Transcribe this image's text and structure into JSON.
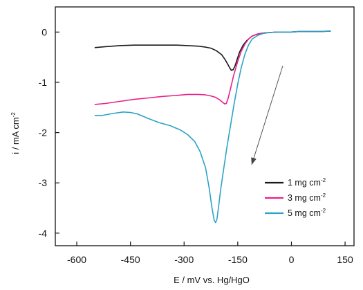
{
  "chart_data": {
    "type": "line",
    "title": "",
    "xlabel": "E / mV vs. Hg/HgO",
    "ylabel": "i / mA cm",
    "ylabel_sup": "-2",
    "xlim": [
      -660,
      175
    ],
    "ylim": [
      -4.25,
      0.5
    ],
    "xticks": [
      -600,
      -450,
      -300,
      -150,
      0,
      150
    ],
    "yticks": [
      0,
      -1,
      -2,
      -3,
      -4
    ],
    "grid": false,
    "legend_position": "bottom-right",
    "annotation": "arrow pointing down-left indicating increasing loading",
    "series": [
      {
        "name": "1 mg cm",
        "name_sup": "-2",
        "color": "#1a1a1a",
        "x": [
          -550,
          -520,
          -480,
          -440,
          -400,
          -360,
          -320,
          -290,
          -260,
          -240,
          -225,
          -210,
          -195,
          -185,
          -178,
          -172,
          -168,
          -163,
          -158,
          -152,
          -145,
          -135,
          -125,
          -110,
          -95,
          -80,
          -60,
          -40,
          -20,
          0,
          20,
          50,
          80,
          110
        ],
        "y": [
          -0.31,
          -0.29,
          -0.27,
          -0.26,
          -0.26,
          -0.26,
          -0.26,
          -0.27,
          -0.28,
          -0.3,
          -0.32,
          -0.37,
          -0.45,
          -0.55,
          -0.64,
          -0.72,
          -0.76,
          -0.75,
          -0.68,
          -0.55,
          -0.4,
          -0.26,
          -0.17,
          -0.08,
          -0.04,
          -0.02,
          -0.01,
          0.0,
          0.0,
          0.0,
          0.01,
          0.01,
          0.01,
          0.02
        ]
      },
      {
        "name": "3 mg cm",
        "name_sup": "-2",
        "color": "#e8208a",
        "x": [
          -550,
          -520,
          -480,
          -440,
          -400,
          -360,
          -320,
          -290,
          -260,
          -240,
          -225,
          -212,
          -200,
          -192,
          -186,
          -182,
          -177,
          -170,
          -162,
          -150,
          -140,
          -130,
          -120,
          -110,
          -95,
          -80,
          -60,
          -40,
          -20,
          0,
          20,
          50,
          80,
          110
        ],
        "y": [
          -1.44,
          -1.42,
          -1.38,
          -1.34,
          -1.31,
          -1.28,
          -1.26,
          -1.24,
          -1.24,
          -1.25,
          -1.27,
          -1.3,
          -1.35,
          -1.4,
          -1.43,
          -1.42,
          -1.32,
          -1.12,
          -0.88,
          -0.58,
          -0.38,
          -0.24,
          -0.14,
          -0.08,
          -0.04,
          -0.02,
          -0.01,
          0.0,
          0.0,
          0.0,
          0.01,
          0.01,
          0.01,
          0.02
        ]
      },
      {
        "name": "5 mg cm",
        "name_sup": "-2",
        "color": "#2ba3c4",
        "x": [
          -550,
          -530,
          -500,
          -470,
          -450,
          -430,
          -400,
          -370,
          -340,
          -310,
          -290,
          -270,
          -255,
          -240,
          -230,
          -222,
          -216,
          -212,
          -208,
          -204,
          -198,
          -190,
          -180,
          -170,
          -160,
          -150,
          -140,
          -130,
          -120,
          -110,
          -95,
          -80,
          -60,
          -40,
          -20,
          0,
          20,
          50,
          80,
          110
        ],
        "y": [
          -1.66,
          -1.66,
          -1.62,
          -1.59,
          -1.6,
          -1.63,
          -1.72,
          -1.8,
          -1.86,
          -1.95,
          -2.04,
          -2.18,
          -2.38,
          -2.7,
          -3.1,
          -3.5,
          -3.74,
          -3.79,
          -3.72,
          -3.5,
          -3.15,
          -2.75,
          -2.28,
          -1.85,
          -1.42,
          -1.03,
          -0.7,
          -0.44,
          -0.26,
          -0.14,
          -0.07,
          -0.03,
          -0.01,
          0.0,
          0.0,
          0.0,
          0.01,
          0.01,
          0.01,
          0.02
        ]
      }
    ]
  }
}
